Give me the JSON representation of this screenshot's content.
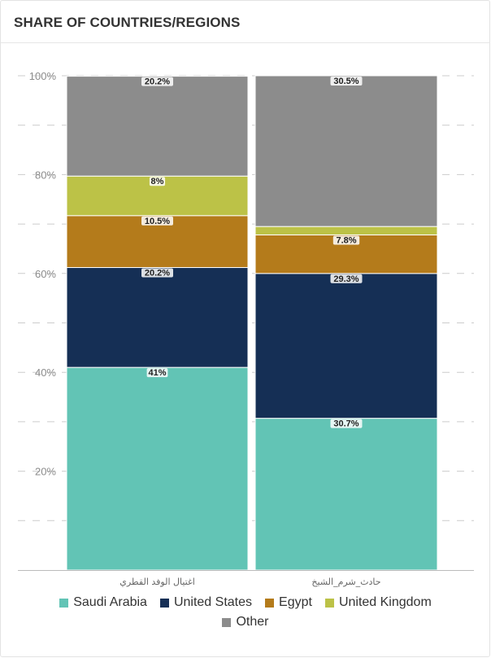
{
  "header": {
    "title": "SHARE OF COUNTRIES/REGIONS"
  },
  "colors": {
    "Saudi Arabia": "#62c4b5",
    "United States": "#152f55",
    "Egypt": "#b47b1b",
    "United Kingdom": "#bcc247",
    "Other": "#8c8c8c"
  },
  "chart_data": {
    "type": "bar",
    "stacked": true,
    "title": "SHARE OF COUNTRIES/REGIONS",
    "categories": [
      "اغتيال الوفد القطري",
      "حادث_شرم_الشيخ"
    ],
    "series": [
      {
        "name": "Saudi Arabia",
        "values": [
          41,
          30.7
        ],
        "labels": [
          "41%",
          "30.7%"
        ]
      },
      {
        "name": "United States",
        "values": [
          20.2,
          29.3
        ],
        "labels": [
          "20.2%",
          "29.3%"
        ]
      },
      {
        "name": "Egypt",
        "values": [
          10.5,
          7.8
        ],
        "labels": [
          "10.5%",
          "7.8%"
        ]
      },
      {
        "name": "United Kingdom",
        "values": [
          8,
          1.7
        ],
        "labels": [
          "8%",
          ""
        ]
      },
      {
        "name": "Other",
        "values": [
          20.2,
          30.5
        ],
        "labels": [
          "20.2%",
          "30.5%"
        ]
      }
    ],
    "yticks": [
      "20%",
      "40%",
      "60%",
      "80%",
      "100%"
    ],
    "ylim": [
      0,
      100
    ],
    "grid": true,
    "legend_position": "bottom"
  },
  "legend": {
    "rows": [
      [
        "Saudi Arabia",
        "United States",
        "Egypt",
        "United Kingdom"
      ],
      [
        "Other"
      ]
    ]
  }
}
